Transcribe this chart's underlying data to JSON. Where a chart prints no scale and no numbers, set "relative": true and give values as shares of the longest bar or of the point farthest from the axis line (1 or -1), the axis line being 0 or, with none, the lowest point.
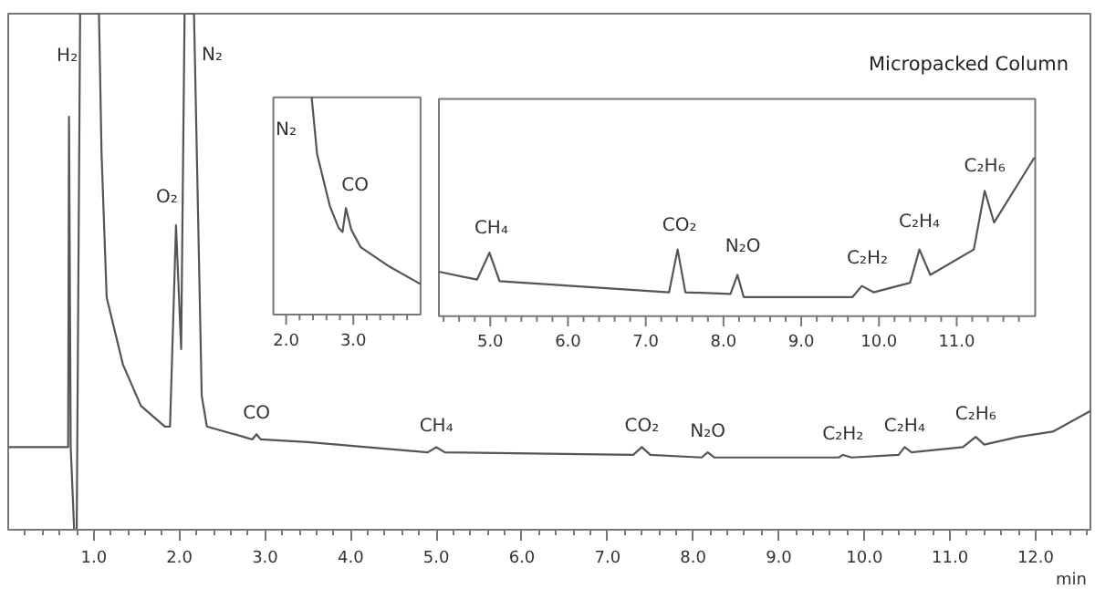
{
  "chart_data": [
    {
      "type": "line",
      "relative": true,
      "title": "Micropacked Column",
      "xlabel": "min",
      "color": "#555555",
      "x": [
        0.0,
        0.7,
        0.71,
        0.73,
        0.77,
        0.8,
        0.84,
        0.9,
        1.06,
        1.09,
        1.15,
        1.34,
        1.55,
        1.83,
        1.89,
        1.96,
        2.02,
        2.06,
        2.17,
        2.26,
        2.32,
        2.75,
        2.85,
        2.9,
        2.95,
        3.5,
        4.9,
        5.0,
        5.1,
        7.3,
        7.4,
        7.5,
        8.1,
        8.17,
        8.25,
        9.7,
        9.75,
        9.85,
        10.4,
        10.47,
        10.55,
        11.15,
        11.3,
        11.4,
        11.8,
        12.2,
        12.64
      ],
      "values": [
        0.16,
        0.16,
        0.8,
        0.16,
        0.0,
        0.0,
        1.0,
        1.0,
        1.0,
        0.73,
        0.45,
        0.32,
        0.24,
        0.2,
        0.2,
        0.59,
        0.35,
        1.0,
        1.0,
        0.26,
        0.2,
        0.18,
        0.175,
        0.185,
        0.175,
        0.17,
        0.15,
        0.16,
        0.15,
        0.145,
        0.16,
        0.145,
        0.14,
        0.15,
        0.14,
        0.14,
        0.145,
        0.14,
        0.145,
        0.16,
        0.15,
        0.16,
        0.18,
        0.165,
        0.18,
        0.19,
        0.23
      ],
      "xlim": [
        0.0,
        12.64
      ],
      "xticks": [
        {
          "value": 1,
          "label": "1.0"
        },
        {
          "value": 2,
          "label": "2.0"
        },
        {
          "value": 3,
          "label": "3.0"
        },
        {
          "value": 4,
          "label": "4.0"
        },
        {
          "value": 5,
          "label": "5.0"
        },
        {
          "value": 6,
          "label": "6.0"
        },
        {
          "value": 7,
          "label": "7.0"
        },
        {
          "value": 8,
          "label": "8.0"
        },
        {
          "value": 9,
          "label": "9.0"
        },
        {
          "value": 10,
          "label": "10.0"
        },
        {
          "value": 11,
          "label": "11.0"
        },
        {
          "value": 12,
          "label": "12.0"
        },
        {
          "value": 0.2,
          "label": null
        },
        {
          "value": 0.4,
          "label": null
        },
        {
          "value": 0.6,
          "label": null
        },
        {
          "value": 0.8,
          "label": null
        },
        {
          "value": 1.2,
          "label": null
        },
        {
          "value": 1.4,
          "label": null
        },
        {
          "value": 1.6,
          "label": null
        },
        {
          "value": 1.8,
          "label": null
        },
        {
          "value": 2.2,
          "label": null
        },
        {
          "value": 2.4,
          "label": null
        },
        {
          "value": 2.6,
          "label": null
        },
        {
          "value": 2.8,
          "label": null
        },
        {
          "value": 3.2,
          "label": null
        },
        {
          "value": 3.4,
          "label": null
        },
        {
          "value": 3.6,
          "label": null
        },
        {
          "value": 3.8,
          "label": null
        },
        {
          "value": 4.2,
          "label": null
        },
        {
          "value": 4.4,
          "label": null
        },
        {
          "value": 4.6,
          "label": null
        },
        {
          "value": 4.8,
          "label": null
        },
        {
          "value": 5.2,
          "label": null
        },
        {
          "value": 5.4,
          "label": null
        },
        {
          "value": 5.6,
          "label": null
        },
        {
          "value": 5.8,
          "label": null
        },
        {
          "value": 6.2,
          "label": null
        },
        {
          "value": 6.4,
          "label": null
        },
        {
          "value": 6.6,
          "label": null
        },
        {
          "value": 6.8,
          "label": null
        },
        {
          "value": 7.2,
          "label": null
        },
        {
          "value": 7.4,
          "label": null
        },
        {
          "value": 7.6,
          "label": null
        },
        {
          "value": 7.8,
          "label": null
        },
        {
          "value": 8.2,
          "label": null
        },
        {
          "value": 8.4,
          "label": null
        },
        {
          "value": 8.6,
          "label": null
        },
        {
          "value": 8.8,
          "label": null
        },
        {
          "value": 9.2,
          "label": null
        },
        {
          "value": 9.4,
          "label": null
        },
        {
          "value": 9.6,
          "label": null
        },
        {
          "value": 9.8,
          "label": null
        },
        {
          "value": 10.2,
          "label": null
        },
        {
          "value": 10.4,
          "label": null
        },
        {
          "value": 10.6,
          "label": null
        },
        {
          "value": 10.8,
          "label": null
        },
        {
          "value": 11.2,
          "label": null
        },
        {
          "value": 11.4,
          "label": null
        },
        {
          "value": 11.6,
          "label": null
        },
        {
          "value": 11.8,
          "label": null
        },
        {
          "value": 12.2,
          "label": null
        },
        {
          "value": 12.4,
          "label": null
        },
        {
          "value": 12.6,
          "label": null
        }
      ],
      "annotations": [
        {
          "text": "H₂",
          "x": 0.71,
          "y": 0.8
        },
        {
          "text": "O₂",
          "x": 1.96,
          "y": 0.59
        },
        {
          "text": "N₂",
          "x": 2.17,
          "y": 1.0
        },
        {
          "text": "CO",
          "x": 2.9,
          "y": 0.185
        },
        {
          "text": "CH₄",
          "x": 5.0,
          "y": 0.16
        },
        {
          "text": "CO₂",
          "x": 7.4,
          "y": 0.16
        },
        {
          "text": "N₂O",
          "x": 8.17,
          "y": 0.15
        },
        {
          "text": "C₂H₂",
          "x": 9.75,
          "y": 0.145
        },
        {
          "text": "C₂H₄",
          "x": 10.47,
          "y": 0.16
        },
        {
          "text": "C₂H₆",
          "x": 11.3,
          "y": 0.18
        }
      ]
    },
    {
      "type": "line",
      "relative": true,
      "color": "#555555",
      "x": [
        2.38,
        2.46,
        2.65,
        2.78,
        2.84,
        2.89,
        2.97,
        3.11,
        3.54,
        4.0
      ],
      "values": [
        1.0,
        0.74,
        0.5,
        0.4,
        0.38,
        0.49,
        0.39,
        0.31,
        0.22,
        0.14
      ],
      "xlim": [
        1.81,
        4.0
      ],
      "xticks": [
        {
          "value": 2,
          "label": "2.0"
        },
        {
          "value": 3,
          "label": "3.0"
        },
        {
          "value": 2.2,
          "label": null
        },
        {
          "value": 2.4,
          "label": null
        },
        {
          "value": 2.6,
          "label": null
        },
        {
          "value": 2.8,
          "label": null
        },
        {
          "value": 3.2,
          "label": null
        },
        {
          "value": 3.4,
          "label": null
        },
        {
          "value": 3.6,
          "label": null
        },
        {
          "value": 3.8,
          "label": null
        }
      ],
      "annotations": [
        {
          "text": "N₂",
          "x": 2.38,
          "y": 1.0
        },
        {
          "text": "CO",
          "x": 2.89,
          "y": 0.49
        }
      ]
    },
    {
      "type": "line",
      "relative": true,
      "color": "#555555",
      "x": [
        4.34,
        4.83,
        4.99,
        5.12,
        7.3,
        7.41,
        7.51,
        8.09,
        8.18,
        8.26,
        9.66,
        9.78,
        9.93,
        10.4,
        10.52,
        10.66,
        11.22,
        11.36,
        11.48,
        12.0
      ],
      "values": [
        0.28,
        0.23,
        0.4,
        0.22,
        0.15,
        0.42,
        0.15,
        0.14,
        0.26,
        0.12,
        0.12,
        0.19,
        0.15,
        0.21,
        0.42,
        0.26,
        0.42,
        0.79,
        0.59,
        1.0
      ],
      "xlim": [
        4.34,
        12.01
      ],
      "xticks": [
        {
          "value": 5,
          "label": "5.0"
        },
        {
          "value": 6,
          "label": "6.0"
        },
        {
          "value": 7,
          "label": "7.0"
        },
        {
          "value": 8,
          "label": "8.0"
        },
        {
          "value": 9,
          "label": "9.0"
        },
        {
          "value": 10,
          "label": "10.0"
        },
        {
          "value": 11,
          "label": "11.0"
        },
        {
          "value": 4.4,
          "label": null
        },
        {
          "value": 4.6,
          "label": null
        },
        {
          "value": 4.8,
          "label": null
        },
        {
          "value": 5.2,
          "label": null
        },
        {
          "value": 5.4,
          "label": null
        },
        {
          "value": 5.6,
          "label": null
        },
        {
          "value": 5.8,
          "label": null
        },
        {
          "value": 6.2,
          "label": null
        },
        {
          "value": 6.4,
          "label": null
        },
        {
          "value": 6.6,
          "label": null
        },
        {
          "value": 6.8,
          "label": null
        },
        {
          "value": 7.2,
          "label": null
        },
        {
          "value": 7.4,
          "label": null
        },
        {
          "value": 7.6,
          "label": null
        },
        {
          "value": 7.8,
          "label": null
        },
        {
          "value": 8.2,
          "label": null
        },
        {
          "value": 8.4,
          "label": null
        },
        {
          "value": 8.6,
          "label": null
        },
        {
          "value": 8.8,
          "label": null
        },
        {
          "value": 9.2,
          "label": null
        },
        {
          "value": 9.4,
          "label": null
        },
        {
          "value": 9.6,
          "label": null
        },
        {
          "value": 9.8,
          "label": null
        },
        {
          "value": 10.2,
          "label": null
        },
        {
          "value": 10.4,
          "label": null
        },
        {
          "value": 10.6,
          "label": null
        },
        {
          "value": 10.8,
          "label": null
        },
        {
          "value": 11.2,
          "label": null
        },
        {
          "value": 11.4,
          "label": null
        },
        {
          "value": 11.6,
          "label": null
        },
        {
          "value": 11.8,
          "label": null
        }
      ],
      "annotations": [
        {
          "text": "CH₄",
          "x": 4.99,
          "y": 0.4
        },
        {
          "text": "CO₂",
          "x": 7.41,
          "y": 0.42
        },
        {
          "text": "N₂O",
          "x": 8.18,
          "y": 0.26
        },
        {
          "text": "C₂H₂",
          "x": 9.78,
          "y": 0.19
        },
        {
          "text": "C₂H₄",
          "x": 10.52,
          "y": 0.42
        },
        {
          "text": "C₂H₆",
          "x": 11.36,
          "y": 0.79
        }
      ]
    }
  ]
}
